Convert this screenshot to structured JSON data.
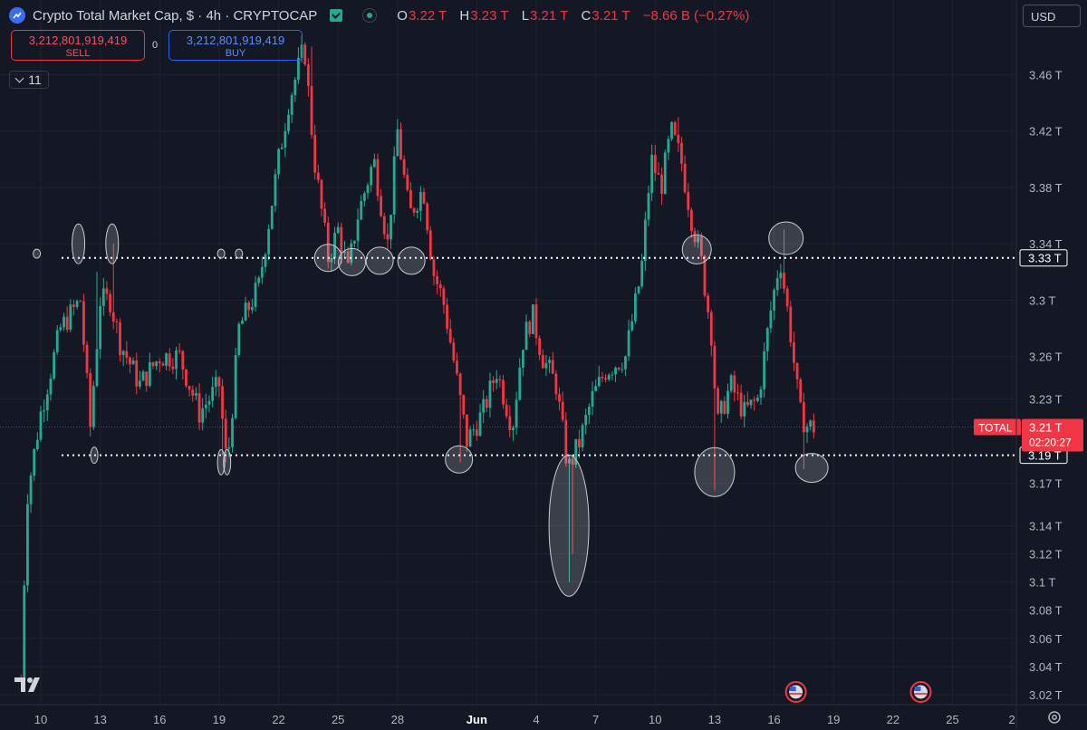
{
  "header": {
    "title": "Crypto Total Market Cap, $ · 4h · CRYPTOCAP",
    "ohlc": [
      {
        "key": "O",
        "value": "3.22 T"
      },
      {
        "key": "H",
        "value": "3.23 T"
      },
      {
        "key": "L",
        "value": "3.21 T"
      },
      {
        "key": "C",
        "value": "3.21 T"
      }
    ],
    "change": "−8.66 B (−0.27%)",
    "symbol_icon": "crypto-coin-icon",
    "flag_icon": "market-flag-icon",
    "live_icon": "live-status-icon"
  },
  "trade": {
    "sell_price": "3,212,801,919,419",
    "sell_label": "SELL",
    "buy_price": "3,212,801,919,419",
    "buy_label": "BUY",
    "spread": "0"
  },
  "indicators": {
    "count": "11"
  },
  "currency": "USD",
  "colors": {
    "background": "#141824",
    "up": "#22ab94",
    "down": "#f23645",
    "grid": "#1f2331",
    "text": "#d1d4dc",
    "level_line": "#ffffff",
    "annotation": "#c8cdd2"
  },
  "chart_data": {
    "type": "candlestick",
    "title": "Crypto Total Market Cap, $ · 4h · CRYPTOCAP",
    "y_unit": "T",
    "ylim": [
      3.013,
      3.513
    ],
    "y_ticks": [
      {
        "value": 3.46,
        "label": "3.46 T"
      },
      {
        "value": 3.42,
        "label": "3.42 T"
      },
      {
        "value": 3.38,
        "label": "3.38 T"
      },
      {
        "value": 3.34,
        "label": "3.34 T"
      },
      {
        "value": 3.3,
        "label": "3.3 T"
      },
      {
        "value": 3.26,
        "label": "3.26 T"
      },
      {
        "value": 3.23,
        "label": "3.23 T"
      },
      {
        "value": 3.17,
        "label": "3.17 T"
      },
      {
        "value": 3.14,
        "label": "3.14 T"
      },
      {
        "value": 3.12,
        "label": "3.12 T"
      },
      {
        "value": 3.1,
        "label": "3.1 T"
      },
      {
        "value": 3.08,
        "label": "3.08 T"
      },
      {
        "value": 3.06,
        "label": "3.06 T"
      },
      {
        "value": 3.04,
        "label": "3.04 T"
      },
      {
        "value": 3.02,
        "label": "3.02 T"
      }
    ],
    "x_ticks": [
      {
        "day": 10,
        "label": "10"
      },
      {
        "day": 13,
        "label": "13"
      },
      {
        "day": 16,
        "label": "16"
      },
      {
        "day": 19,
        "label": "19"
      },
      {
        "day": 22,
        "label": "22"
      },
      {
        "day": 25,
        "label": "25"
      },
      {
        "day": 28,
        "label": "28"
      },
      {
        "day": 32,
        "label": "Jun"
      },
      {
        "day": 35,
        "label": "4"
      },
      {
        "day": 38,
        "label": "7"
      },
      {
        "day": 41,
        "label": "10"
      },
      {
        "day": 44,
        "label": "13"
      },
      {
        "day": 47,
        "label": "16"
      },
      {
        "day": 50,
        "label": "19"
      },
      {
        "day": 53,
        "label": "22"
      },
      {
        "day": 56,
        "label": "25"
      },
      {
        "day": 59,
        "label": "2"
      }
    ],
    "levels": [
      {
        "value": 3.33,
        "label": "3.33 T",
        "style": "dotted"
      },
      {
        "value": 3.19,
        "label": "3.19 T",
        "style": "dotted"
      }
    ],
    "current": {
      "value": 3.21,
      "name": "TOTAL",
      "label": "3.21 T",
      "countdown": "02:20:27"
    },
    "anchors": [
      {
        "day": 9,
        "value": 3.03
      },
      {
        "day": 9.3,
        "value": 3.16
      },
      {
        "day": 10,
        "value": 3.22
      },
      {
        "day": 11,
        "value": 3.28
      },
      {
        "day": 12,
        "value": 3.3
      },
      {
        "day": 12.5,
        "value": 3.21
      },
      {
        "day": 13,
        "value": 3.3
      },
      {
        "day": 13.5,
        "value": 3.3
      },
      {
        "day": 14,
        "value": 3.27
      },
      {
        "day": 15,
        "value": 3.24
      },
      {
        "day": 16,
        "value": 3.26
      },
      {
        "day": 17,
        "value": 3.26
      },
      {
        "day": 18,
        "value": 3.22
      },
      {
        "day": 19,
        "value": 3.24
      },
      {
        "day": 19.4,
        "value": 3.18
      },
      {
        "day": 20,
        "value": 3.28
      },
      {
        "day": 21,
        "value": 3.31
      },
      {
        "day": 22,
        "value": 3.4
      },
      {
        "day": 22.5,
        "value": 3.44
      },
      {
        "day": 23.3,
        "value": 3.48
      },
      {
        "day": 23.8,
        "value": 3.4
      },
      {
        "day": 24.5,
        "value": 3.33
      },
      {
        "day": 25,
        "value": 3.35
      },
      {
        "day": 25.5,
        "value": 3.32
      },
      {
        "day": 26,
        "value": 3.36
      },
      {
        "day": 26.8,
        "value": 3.4
      },
      {
        "day": 27.5,
        "value": 3.34
      },
      {
        "day": 28,
        "value": 3.42
      },
      {
        "day": 28.6,
        "value": 3.36
      },
      {
        "day": 29.3,
        "value": 3.38
      },
      {
        "day": 29.8,
        "value": 3.32
      },
      {
        "day": 30.3,
        "value": 3.3
      },
      {
        "day": 30.8,
        "value": 3.26
      },
      {
        "day": 31.5,
        "value": 3.2
      },
      {
        "day": 32.3,
        "value": 3.22
      },
      {
        "day": 33,
        "value": 3.25
      },
      {
        "day": 33.8,
        "value": 3.21
      },
      {
        "day": 34.3,
        "value": 3.27
      },
      {
        "day": 34.8,
        "value": 3.29
      },
      {
        "day": 35.3,
        "value": 3.26
      },
      {
        "day": 36,
        "value": 3.24
      },
      {
        "day": 36.6,
        "value": 3.18
      },
      {
        "day": 37.2,
        "value": 3.2
      },
      {
        "day": 37.8,
        "value": 3.23
      },
      {
        "day": 38.5,
        "value": 3.25
      },
      {
        "day": 39.5,
        "value": 3.26
      },
      {
        "day": 40.3,
        "value": 3.32
      },
      {
        "day": 40.8,
        "value": 3.4
      },
      {
        "day": 41.3,
        "value": 3.38
      },
      {
        "day": 41.8,
        "value": 3.42
      },
      {
        "day": 42.3,
        "value": 3.4
      },
      {
        "day": 42.8,
        "value": 3.36
      },
      {
        "day": 43.3,
        "value": 3.33
      },
      {
        "day": 43.9,
        "value": 3.27
      },
      {
        "day": 44.1,
        "value": 3.21
      },
      {
        "day": 44.8,
        "value": 3.24
      },
      {
        "day": 45.5,
        "value": 3.22
      },
      {
        "day": 46.2,
        "value": 3.23
      },
      {
        "day": 46.8,
        "value": 3.29
      },
      {
        "day": 47.3,
        "value": 3.33
      },
      {
        "day": 47.8,
        "value": 3.28
      },
      {
        "day": 48.3,
        "value": 3.22
      },
      {
        "day": 48.7,
        "value": 3.21
      },
      {
        "day": 49.0,
        "value": 3.21
      }
    ],
    "wicks": [
      {
        "day": 12.8,
        "value": 3.32
      },
      {
        "day": 13.6,
        "value": 3.34
      },
      {
        "day": 19.2,
        "value": 3.19
      },
      {
        "day": 19.3,
        "value": 3.185
      },
      {
        "day": 23.6,
        "value": 3.48
      },
      {
        "day": 31.2,
        "value": 3.185
      },
      {
        "day": 36.65,
        "value": 3.1
      },
      {
        "day": 36.8,
        "value": 3.12
      },
      {
        "day": 42.1,
        "value": 3.43
      },
      {
        "day": 44.0,
        "value": 3.165
      },
      {
        "day": 47.55,
        "value": 3.35
      },
      {
        "day": 48.5,
        "value": 3.18
      }
    ],
    "annotations": [
      {
        "type": "circle",
        "day": 9.8,
        "value": 3.333
      },
      {
        "type": "ellipse",
        "day": 11.9,
        "value": 3.34
      },
      {
        "type": "ellipse",
        "day": 13.6,
        "value": 3.34
      },
      {
        "type": "circle",
        "day": 12.7,
        "value": 3.19
      },
      {
        "type": "circle",
        "day": 19.1,
        "value": 3.333
      },
      {
        "type": "circle",
        "day": 20.0,
        "value": 3.333
      },
      {
        "type": "ellipse",
        "day": 19.1,
        "value": 3.185
      },
      {
        "type": "ellipse",
        "day": 19.4,
        "value": 3.185
      },
      {
        "type": "circle",
        "day": 24.5,
        "value": 3.33
      },
      {
        "type": "circle",
        "day": 25.7,
        "value": 3.327
      },
      {
        "type": "circle",
        "day": 27.1,
        "value": 3.328
      },
      {
        "type": "circle",
        "day": 28.7,
        "value": 3.328
      },
      {
        "type": "circle",
        "day": 31.1,
        "value": 3.187
      },
      {
        "type": "ellipse",
        "day": 36.65,
        "value": 3.14
      },
      {
        "type": "circle",
        "day": 43.1,
        "value": 3.336
      },
      {
        "type": "circle",
        "day": 44.0,
        "value": 3.178
      },
      {
        "type": "circle",
        "day": 47.6,
        "value": 3.344
      },
      {
        "type": "circle",
        "day": 48.9,
        "value": 3.181
      }
    ],
    "events": [
      {
        "day": 48.1,
        "name": "us-event-flag-icon"
      },
      {
        "day": 54.4,
        "name": "us-event-flag-icon"
      }
    ]
  }
}
